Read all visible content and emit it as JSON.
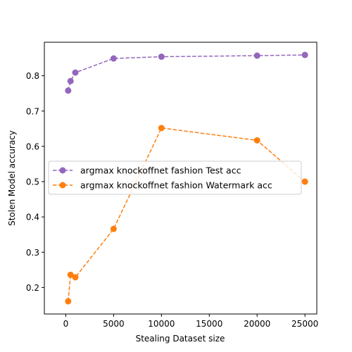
{
  "chart_data": {
    "type": "line",
    "title": "",
    "xlabel": "Stealing Dataset size",
    "ylabel": "Stolen Model accuracy",
    "xlim": [
      -2240,
      26240
    ],
    "ylim": [
      0.125,
      0.895
    ],
    "x_ticks": [
      0,
      5000,
      10000,
      15000,
      20000,
      25000
    ],
    "y_ticks": [
      0.2,
      0.3,
      0.4,
      0.5,
      0.6,
      0.7,
      0.8
    ],
    "grid": false,
    "legend_position": "center-left",
    "series": [
      {
        "name": "argmax knockoffnet fashion Test acc",
        "color": "#9467bd",
        "line_style": "dashed",
        "marker": "circle",
        "x": [
          250,
          500,
          1000,
          5000,
          10000,
          20000,
          25000
        ],
        "y": [
          0.758,
          0.785,
          0.809,
          0.849,
          0.854,
          0.857,
          0.859
        ]
      },
      {
        "name": "argmax knockoffnet fashion Watermark acc",
        "color": "#ff7f0e",
        "line_style": "dashed",
        "marker": "circle",
        "x": [
          250,
          500,
          1000,
          5000,
          10000,
          20000,
          25000
        ],
        "y": [
          0.161,
          0.236,
          0.229,
          0.366,
          0.652,
          0.617,
          0.5
        ]
      }
    ]
  }
}
